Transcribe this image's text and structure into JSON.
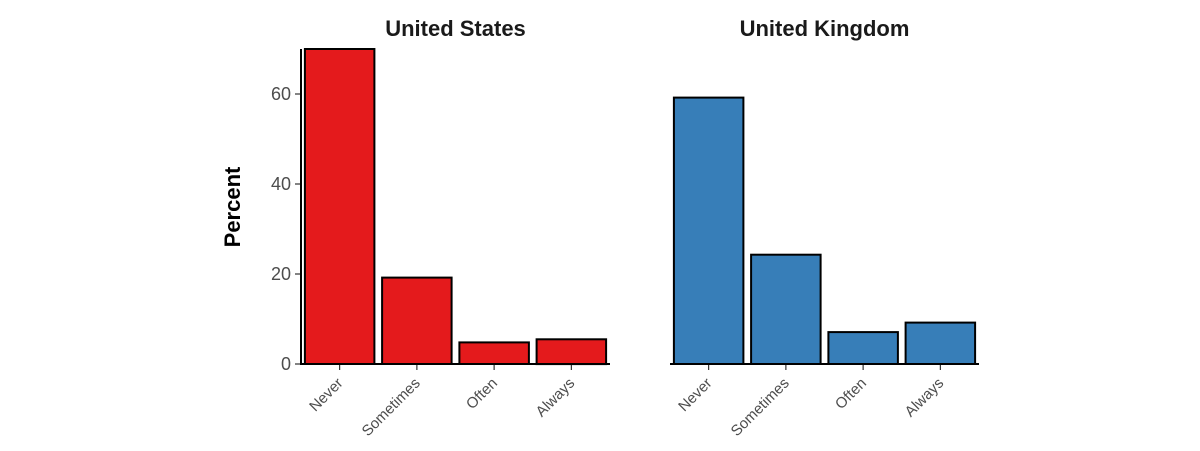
{
  "chart_data": {
    "type": "bar",
    "ylabel": "Percent",
    "ylim": [
      0,
      70
    ],
    "yticks": [
      0,
      20,
      40,
      60
    ],
    "grid": false,
    "legend": "none",
    "categories": [
      "Never",
      "Sometimes",
      "Often",
      "Always"
    ],
    "panels": [
      {
        "title": "United States",
        "color": "#E41A1C",
        "values": [
          70.0,
          19.2,
          4.8,
          5.5
        ]
      },
      {
        "title": "United Kingdom",
        "color": "#377EB8",
        "values": [
          59.2,
          24.3,
          7.1,
          9.2
        ]
      }
    ]
  }
}
